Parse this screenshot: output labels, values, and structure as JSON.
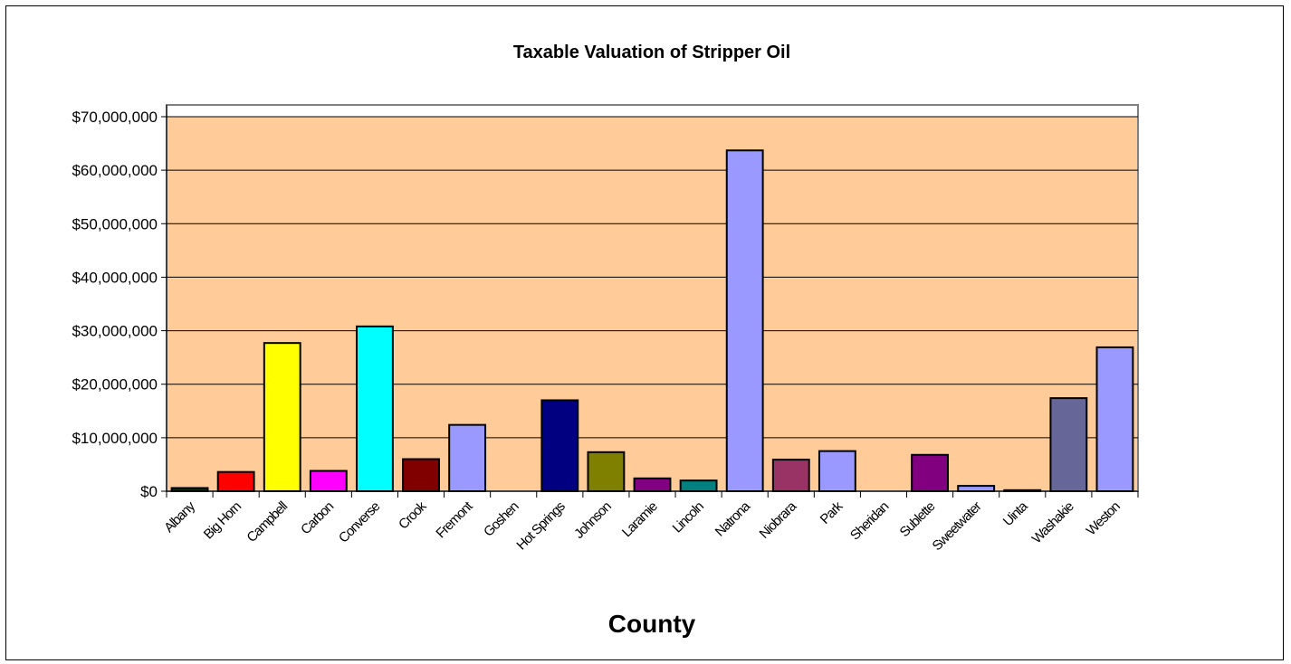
{
  "chart_data": {
    "type": "bar",
    "title": "Taxable Valuation of Stripper Oil",
    "xlabel": "County",
    "ylabel": "",
    "ylim": [
      0,
      70000000
    ],
    "yticks": [
      0,
      10000000,
      20000000,
      30000000,
      40000000,
      50000000,
      60000000,
      70000000
    ],
    "ytick_labels": [
      "$0",
      "$10,000,000",
      "$20,000,000",
      "$30,000,000",
      "$40,000,000",
      "$50,000,000",
      "$60,000,000",
      "$70,000,000"
    ],
    "grid": true,
    "legend": "none",
    "plot_background": "#FFCC99",
    "categories": [
      "Albany",
      "Big Horn",
      "Campbell",
      "Carbon",
      "Converse",
      "Crook",
      "Fremont",
      "Goshen",
      "Hot Springs",
      "Johnson",
      "Laramie",
      "Lincoln",
      "Natrona",
      "Niobrara",
      "Park",
      "Sheridan",
      "Sublette",
      "Sweetwater",
      "Uinta",
      "Washakie",
      "Weston"
    ],
    "values": [
      600000,
      3600000,
      27700000,
      3800000,
      30800000,
      6000000,
      12400000,
      0,
      17000000,
      7300000,
      2400000,
      2000000,
      63700000,
      5900000,
      7500000,
      0,
      6800000,
      1000000,
      200000,
      17400000,
      26900000
    ],
    "colors": [
      "#003300",
      "#FF0000",
      "#FFFF00",
      "#FF00FF",
      "#00FFFF",
      "#800000",
      "#9999FF",
      "#9999FF",
      "#000080",
      "#808000",
      "#800080",
      "#008080",
      "#9999FF",
      "#993366",
      "#9999FF",
      "#9999FF",
      "#800080",
      "#9999FF",
      "#800000",
      "#666699",
      "#9999FF"
    ]
  }
}
